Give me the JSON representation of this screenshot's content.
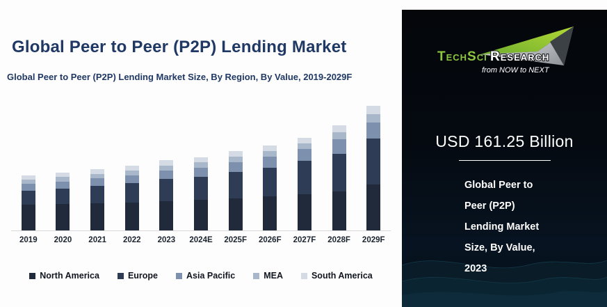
{
  "header": {
    "title": "Global Peer to Peer (P2P) Lending Market",
    "subtitle": "Global Peer to Peer (P2P) Lending Market Size, By Region, By Value, 2019-2029F",
    "title_color": "#203864"
  },
  "chart_data": {
    "type": "bar",
    "stacked": true,
    "title": "Global Peer to Peer (P2P) Lending Market Size, By Region, By Value, 2019-2029F",
    "unit": "USD Billion",
    "categories": [
      "2019",
      "2020",
      "2021",
      "2022",
      "2023",
      "2024E",
      "2025F",
      "2026F",
      "2027F",
      "2028F",
      "2029F"
    ],
    "series": [
      {
        "name": "North America",
        "color": "#212a3a",
        "values": [
          59,
          61,
          63,
          65,
          68,
          70,
          74,
          78,
          83,
          90,
          106
        ]
      },
      {
        "name": "Europe",
        "color": "#2f3c55",
        "values": [
          33,
          36,
          40,
          44,
          50,
          54,
          61,
          67,
          77,
          87,
          106
        ]
      },
      {
        "name": "Asia Pacific",
        "color": "#7d90ad",
        "values": [
          15,
          16,
          17,
          18,
          20,
          21,
          23,
          25,
          28,
          33,
          37
        ]
      },
      {
        "name": "MEA",
        "color": "#a9b7cb",
        "values": [
          10,
          10,
          10.5,
          11,
          11.5,
          11.5,
          12,
          12.5,
          13,
          16,
          18.5
        ]
      },
      {
        "name": "South America",
        "color": "#d5dbe5",
        "values": [
          10,
          10,
          10.5,
          11,
          11.75,
          11.5,
          12.5,
          12.5,
          13,
          17,
          20
        ]
      }
    ],
    "ylim": [
      0,
      300
    ],
    "grid": false,
    "y_axis_visible": false,
    "legend_position": "bottom",
    "annotation": "2023 total shown in sidebar as USD 161.25 Billion"
  },
  "sidebar": {
    "brand": {
      "name_part1": "TechSci",
      "name_part2": "Research",
      "tagline": "from NOW to NEXT",
      "accent_green": "#8dc63f"
    },
    "highlight_value": "USD 161.25 Billion",
    "highlight_caption_lines": [
      "Global Peer to",
      "Peer (P2P)",
      "Lending Market",
      "Size, By Value,",
      "2023"
    ],
    "background": "#05080d",
    "text_color": "#ffffff"
  }
}
